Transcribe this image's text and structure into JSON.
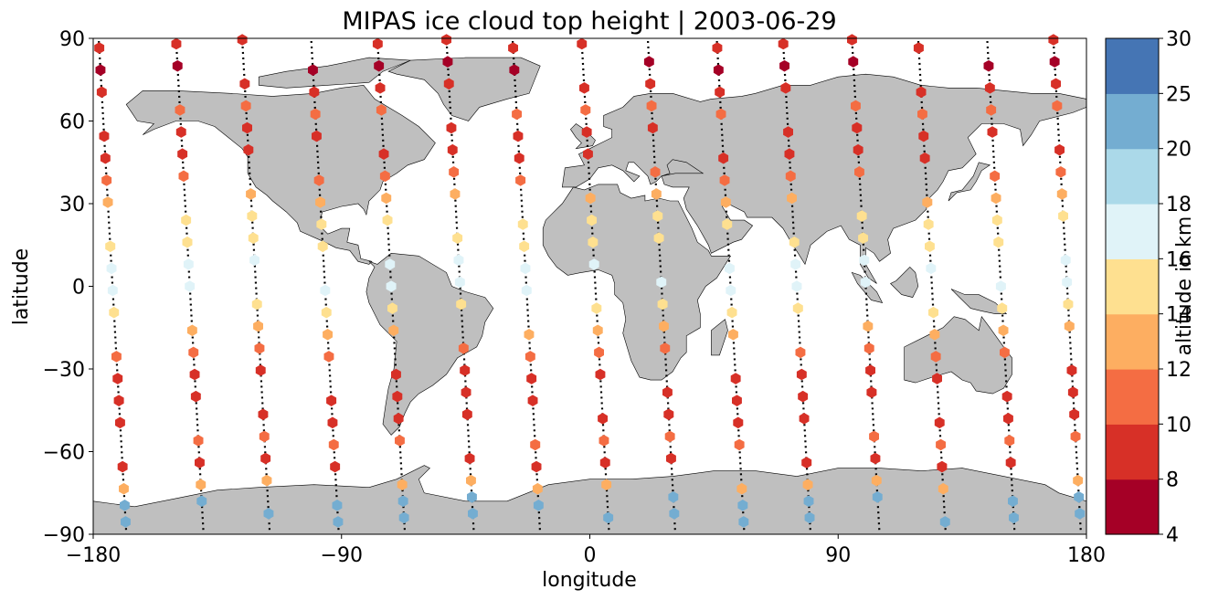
{
  "title": "MIPAS ice cloud top height | 2003-06-29",
  "map": {
    "xlabel": "longitude",
    "ylabel": "latitude",
    "xlim": [
      -180,
      180
    ],
    "ylim": [
      -90,
      90
    ],
    "xticks": [
      -180,
      -90,
      0,
      90,
      180
    ],
    "yticks": [
      -90,
      -60,
      -30,
      0,
      30,
      60,
      90
    ],
    "xtick_labels": [
      "−180",
      "−90",
      "0",
      "90",
      "180"
    ],
    "ytick_labels": [
      "−90",
      "−60",
      "−30",
      "0",
      "30",
      "60",
      "90"
    ],
    "land_color": "#bfbfbf",
    "coast_color": "#000000",
    "track_color": "#000000"
  },
  "colorbar": {
    "label": "altitude in km",
    "bounds": [
      4,
      8,
      10,
      12,
      14,
      16,
      18,
      20,
      25,
      30
    ],
    "tick_labels": [
      "4",
      "8",
      "10",
      "12",
      "14",
      "16",
      "18",
      "20",
      "25",
      "30"
    ],
    "colors": [
      "#a50026",
      "#d73027",
      "#f46d43",
      "#fdae61",
      "#fee090",
      "#e0f3f8",
      "#abd9e9",
      "#74add1",
      "#4575b4"
    ]
  },
  "chart_data": {
    "type": "scatter",
    "title": "MIPAS ice cloud top height | 2003-06-29",
    "xlabel": "longitude",
    "ylabel": "latitude",
    "xlim": [
      -180,
      180
    ],
    "ylim": [
      -90,
      90
    ],
    "colorbar_label": "altitude in km",
    "legend": "none",
    "tracks": [
      {
        "start_lon": -178,
        "end_lon": -168
      },
      {
        "start_lon": -150,
        "end_lon": -140
      },
      {
        "start_lon": -126,
        "end_lon": -116
      },
      {
        "start_lon": -101,
        "end_lon": -91
      },
      {
        "start_lon": -77,
        "end_lon": -67
      },
      {
        "start_lon": -52,
        "end_lon": -42
      },
      {
        "start_lon": -28,
        "end_lon": -18
      },
      {
        "start_lon": -3,
        "end_lon": 7
      },
      {
        "start_lon": 21,
        "end_lon": 31
      },
      {
        "start_lon": 46,
        "end_lon": 56
      },
      {
        "start_lon": 70,
        "end_lon": 80
      },
      {
        "start_lon": 95,
        "end_lon": 105
      },
      {
        "start_lon": 119,
        "end_lon": 129
      },
      {
        "start_lon": 144,
        "end_lon": 154
      },
      {
        "start_lon": 168,
        "end_lon": 178
      }
    ],
    "altitude_profile_km": [
      {
        "lat": 88,
        "alt": 8
      },
      {
        "lat": 80,
        "alt": 7
      },
      {
        "lat": 72,
        "alt": 9
      },
      {
        "lat": 64,
        "alt": 10
      },
      {
        "lat": 56,
        "alt": 8
      },
      {
        "lat": 48,
        "alt": 9
      },
      {
        "lat": 40,
        "alt": 10
      },
      {
        "lat": 32,
        "alt": 12
      },
      {
        "lat": 24,
        "alt": 14
      },
      {
        "lat": 16,
        "alt": 15
      },
      {
        "lat": 8,
        "alt": 16
      },
      {
        "lat": 0,
        "alt": 17
      },
      {
        "lat": -8,
        "alt": 15
      },
      {
        "lat": -16,
        "alt": 13
      },
      {
        "lat": -24,
        "alt": 11
      },
      {
        "lat": -32,
        "alt": 9
      },
      {
        "lat": -40,
        "alt": 8
      },
      {
        "lat": -48,
        "alt": 9
      },
      {
        "lat": -56,
        "alt": 11
      },
      {
        "lat": -64,
        "alt": 8
      },
      {
        "lat": -72,
        "alt": 12
      },
      {
        "lat": -78,
        "alt": 22
      },
      {
        "lat": -84,
        "alt": 23
      }
    ]
  }
}
